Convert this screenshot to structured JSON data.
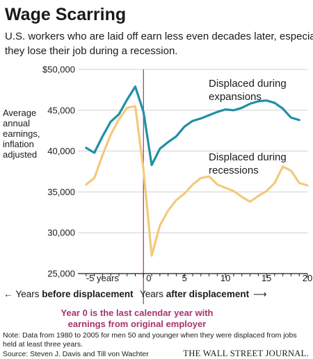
{
  "title": "Wage Scarring",
  "subtitle": [
    "U.S. workers who are laid off earn less even decades later, especially if",
    "they lose their job during a recession."
  ],
  "colors": {
    "expansions": "#1f8fa6",
    "recessions": "#f5c97a",
    "year_zero": "#a8326e",
    "grid": "#cfcfcf"
  },
  "chart_data": {
    "type": "line",
    "ylabel": [
      "Average",
      "annual",
      "earnings,",
      "inflation",
      "adjusted"
    ],
    "xlabel": "",
    "xlim": [
      -8,
      20
    ],
    "ylim": [
      25000,
      50000
    ],
    "yticks": [
      {
        "value": 50000,
        "label": "$50,000"
      },
      {
        "value": 45000,
        "label": "45,000"
      },
      {
        "value": 40000,
        "label": "40,000"
      },
      {
        "value": 35000,
        "label": "35,000"
      },
      {
        "value": 30000,
        "label": "30,000"
      },
      {
        "value": 25000,
        "label": "25,000"
      }
    ],
    "xticks": [
      {
        "value": -5,
        "label": "-5 years"
      },
      {
        "value": 0,
        "label": "0"
      },
      {
        "value": 5,
        "label": "5"
      },
      {
        "value": 10,
        "label": "10"
      },
      {
        "value": 15,
        "label": "15"
      },
      {
        "value": 20,
        "label": "20"
      }
    ],
    "grid": true,
    "series": [
      {
        "key": "expansions",
        "name": [
          "Displaced during",
          "expansions"
        ],
        "x": [
          -7,
          -6,
          -5,
          -4,
          -3,
          -2,
          -1,
          0,
          1,
          2,
          3,
          4,
          5,
          6,
          7,
          8,
          9,
          10,
          11,
          12,
          13,
          14,
          15,
          16,
          17,
          18,
          19
        ],
        "y": [
          40400,
          39800,
          41800,
          43600,
          44500,
          46300,
          47900,
          44800,
          38300,
          40300,
          41100,
          41800,
          43000,
          43700,
          44000,
          44400,
          44800,
          45100,
          45000,
          45300,
          45800,
          46100,
          46200,
          45900,
          45200,
          44100,
          43800
        ]
      },
      {
        "key": "recessions",
        "name": [
          "Displaced during",
          "recessions"
        ],
        "x": [
          -7,
          -6,
          -5,
          -4,
          -3,
          -2,
          -1,
          0,
          1,
          2,
          3,
          4,
          5,
          6,
          7,
          8,
          9,
          10,
          11,
          12,
          13,
          14,
          15,
          16,
          17,
          18,
          19,
          20
        ],
        "y": [
          35900,
          36700,
          39500,
          42000,
          43900,
          45300,
          45500,
          37700,
          27200,
          30900,
          32700,
          34000,
          34800,
          35900,
          36700,
          36900,
          35900,
          35500,
          35100,
          34400,
          33800,
          34500,
          35100,
          36100,
          38100,
          37600,
          36100,
          35800
        ]
      }
    ],
    "directions": {
      "before_prefix": "Years ",
      "before_bold": "before displacement",
      "after_prefix": "Years ",
      "after_bold": "after displacement"
    },
    "annotation": [
      "Year 0 is the last calendar year with",
      "earnings from original employer"
    ]
  },
  "note": [
    "Note: Data from 1980 to 2005 for men 50 and younger when they were displaced from jobs",
    "held at least three years."
  ],
  "source": "Source: Steven J. Davis and Till von Wachter",
  "brand": "THE WALL STREET JOURNAL."
}
